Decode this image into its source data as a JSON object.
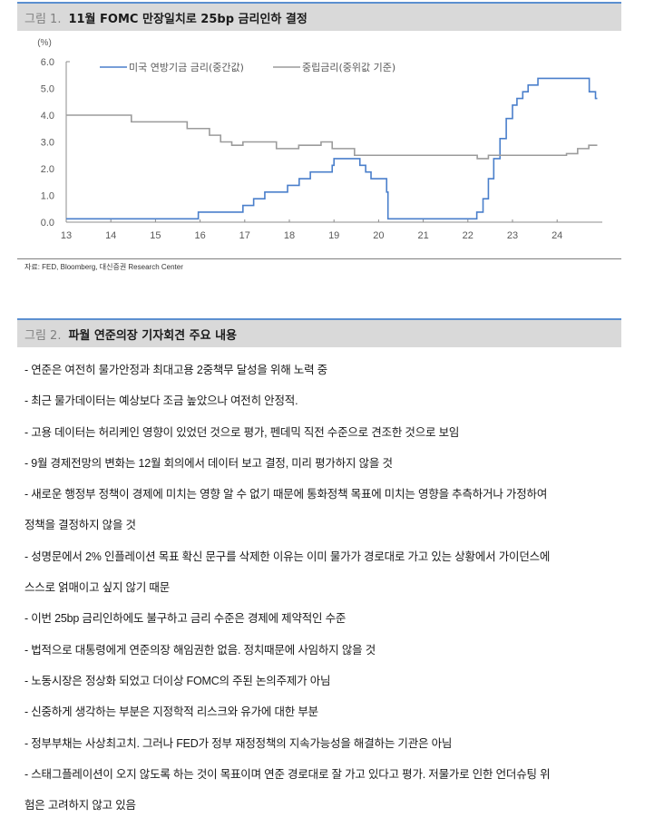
{
  "figure1": {
    "number": "그림 1.",
    "title": "11월 FOMC 만장일치로 25bp 금리인하 결정",
    "source": "자료: FED, Bloomberg, 대신증권 Research Center"
  },
  "figure2": {
    "number": "그림 2.",
    "title": "파월 연준의장 기자회견 주요 내용",
    "lines": [
      "- 연준은 여전히 물가안정과 최대고용 2중책무 달성을 위해 노력 중",
      "- 최근 물가데이터는 예상보다 조금 높았으나 여전히 안정적.",
      "- 고용 데이터는 허리케인 영향이 있었던 것으로 평가, 펜데믹 직전 수준으로 견조한 것으로 보임",
      "- 9월 경제전망의 변화는 12월 회의에서 데이터 보고 결정, 미리 평가하지 않을 것",
      "- 새로운 행정부 정책이 경제에 미치는 영향 알 수 없기 때문에 통화정책 목표에 미치는 영향을 추측하거나 가정하여",
      "정책을 결정하지 않을 것",
      "- 성명문에서 2% 인플레이션 목표 확신 문구를 삭제한 이유는 이미 물가가 경로대로 가고 있는 상황에서 가이던스에",
      "스스로 얽매이고 싶지 않기 때문",
      "- 이번 25bp 금리인하에도 불구하고 금리 수준은 경제에 제약적인 수준",
      "- 법적으로 대통령에게 연준의장 해임권한 없음. 정치때문에 사임하지 않을 것",
      "- 노동시장은 정상화 되었고 더이상 FOMC의 주된 논의주제가 아님",
      "- 신중하게 생각하는 부분은 지정학적 리스크와 유가에 대한 부분",
      "- 정부부채는 사상최고치. 그러나 FED가 정부 재정정책의 지속가능성을 해결하는 기관은 아님",
      "- 스태그플레이션이 오지 않도록 하는 것이 목표이며 연준 경로대로 잘 가고 있다고 평가. 저물가로 인한 언더슈팅 위",
      "험은 고려하지 않고 있음"
    ]
  },
  "chart_data": {
    "type": "line",
    "title": "11월 FOMC 만장일치로 25bp 금리인하 결정",
    "xlabel": "",
    "ylabel": "(%)",
    "xlim": [
      13,
      25
    ],
    "ylim": [
      0,
      6
    ],
    "x_ticks": [
      "13",
      "14",
      "15",
      "16",
      "17",
      "18",
      "19",
      "20",
      "21",
      "22",
      "23",
      "24"
    ],
    "y_ticks": [
      "0.0",
      "1.0",
      "2.0",
      "3.0",
      "4.0",
      "5.0",
      "6.0"
    ],
    "grid": false,
    "legend_position": "top",
    "series": [
      {
        "name": "미국 연방기금 금리(중간값)",
        "color": "#4a7fcb",
        "step_points": [
          [
            13.0,
            0.125
          ],
          [
            15.96,
            0.375
          ],
          [
            16.96,
            0.625
          ],
          [
            17.2,
            0.875
          ],
          [
            17.45,
            1.125
          ],
          [
            17.96,
            1.375
          ],
          [
            18.22,
            1.625
          ],
          [
            18.47,
            1.875
          ],
          [
            18.96,
            2.125
          ],
          [
            19.0,
            2.375
          ],
          [
            19.58,
            2.125
          ],
          [
            19.71,
            1.875
          ],
          [
            19.83,
            1.625
          ],
          [
            20.18,
            1.125
          ],
          [
            20.21,
            0.125
          ],
          [
            22.2,
            0.375
          ],
          [
            22.34,
            0.875
          ],
          [
            22.46,
            1.625
          ],
          [
            22.58,
            2.375
          ],
          [
            22.72,
            3.125
          ],
          [
            22.86,
            3.875
          ],
          [
            23.0,
            4.375
          ],
          [
            23.1,
            4.625
          ],
          [
            23.23,
            4.875
          ],
          [
            23.35,
            5.125
          ],
          [
            23.57,
            5.375
          ],
          [
            24.72,
            4.875
          ],
          [
            24.86,
            4.625
          ]
        ],
        "end_x": 24.9
      },
      {
        "name": "중립금리(중위값 기준)",
        "color": "#9b9b9b",
        "step_points": [
          [
            13.0,
            4.0
          ],
          [
            14.46,
            3.75
          ],
          [
            15.71,
            3.5
          ],
          [
            16.21,
            3.25
          ],
          [
            16.46,
            3.0
          ],
          [
            16.71,
            2.875
          ],
          [
            16.96,
            3.0
          ],
          [
            17.71,
            2.75
          ],
          [
            18.21,
            2.875
          ],
          [
            18.71,
            3.0
          ],
          [
            18.96,
            2.75
          ],
          [
            19.46,
            2.5
          ],
          [
            22.21,
            2.375
          ],
          [
            22.46,
            2.5
          ],
          [
            24.21,
            2.5625
          ],
          [
            24.46,
            2.75
          ],
          [
            24.71,
            2.875
          ]
        ],
        "end_x": 24.9
      }
    ]
  }
}
